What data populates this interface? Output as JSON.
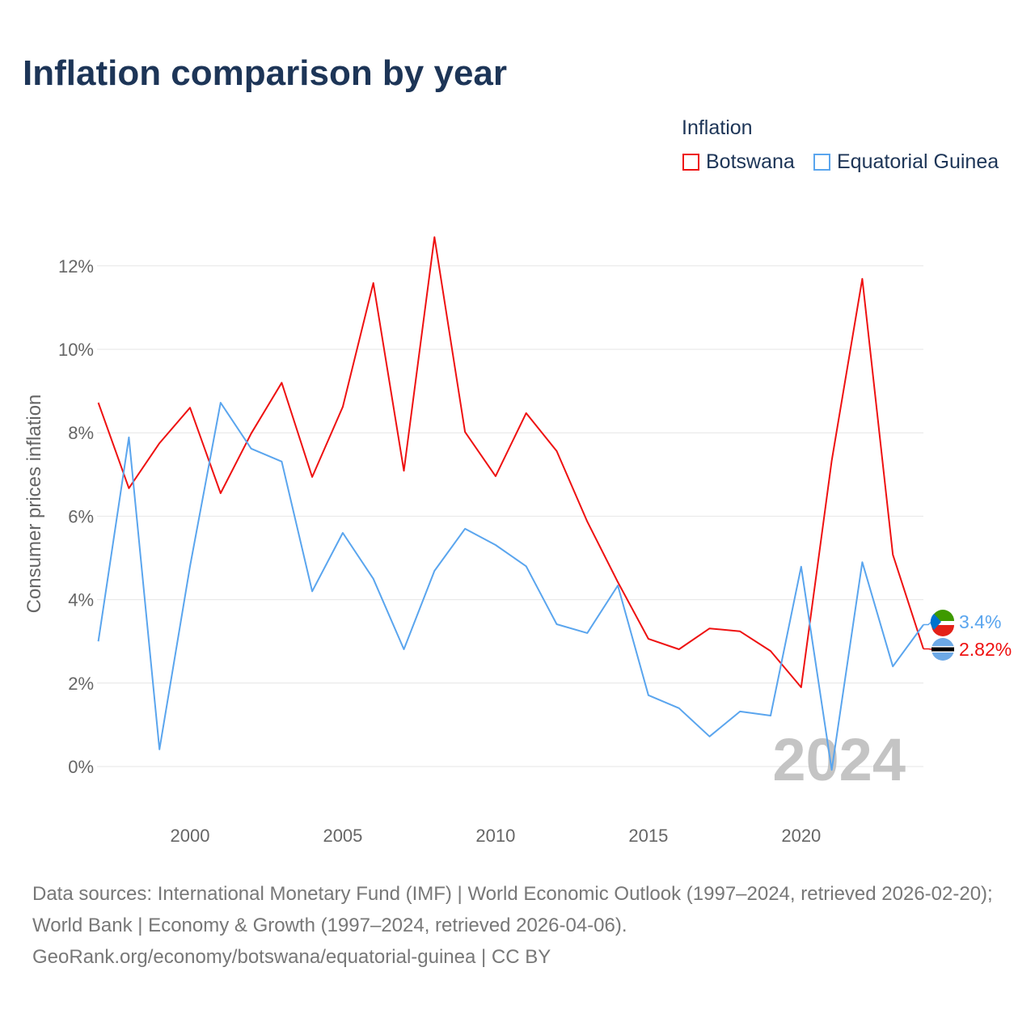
{
  "title": "Inflation comparison by year",
  "legend": {
    "title": "Inflation",
    "items": [
      {
        "name": "Botswana",
        "color": "#ee1111"
      },
      {
        "name": "Equatorial Guinea",
        "color": "#5aa5ee"
      }
    ]
  },
  "footer": {
    "line1": "Data sources: International Monetary Fund (IMF) | World Economic Outlook (1997–2024, retrieved 2026-02-20); World Bank | Economy & Growth (1997–2024, retrieved 2026-04-06).",
    "line2": "GeoRank.org/economy/botswana/equatorial-guinea | CC BY"
  },
  "chart_data": {
    "type": "line",
    "title": "Inflation comparison by year",
    "xlabel": "",
    "ylabel": "Consumer prices inflation",
    "ylim": [
      -1,
      13
    ],
    "xlim": [
      1997,
      2024
    ],
    "grid": true,
    "legend_placement": "top-right",
    "year_watermark": "2024",
    "y_ticks": [
      {
        "v": 0,
        "label": "0%"
      },
      {
        "v": 2,
        "label": "2%"
      },
      {
        "v": 4,
        "label": "4%"
      },
      {
        "v": 6,
        "label": "6%"
      },
      {
        "v": 8,
        "label": "8%"
      },
      {
        "v": 10,
        "label": "10%"
      },
      {
        "v": 12,
        "label": "12%"
      }
    ],
    "x_ticks": [
      {
        "v": 2000,
        "label": "2000"
      },
      {
        "v": 2005,
        "label": "2005"
      },
      {
        "v": 2010,
        "label": "2010"
      },
      {
        "v": 2015,
        "label": "2015"
      },
      {
        "v": 2020,
        "label": "2020"
      }
    ],
    "x": [
      1997,
      1998,
      1999,
      2000,
      2001,
      2002,
      2003,
      2004,
      2005,
      2006,
      2007,
      2008,
      2009,
      2010,
      2011,
      2012,
      2013,
      2014,
      2015,
      2016,
      2017,
      2018,
      2019,
      2020,
      2021,
      2022,
      2023,
      2024
    ],
    "series": [
      {
        "name": "Botswana",
        "color": "#ee1111",
        "end_label": "2.82%",
        "values": [
          8.72,
          6.67,
          7.75,
          8.6,
          6.55,
          7.98,
          9.2,
          6.94,
          8.62,
          11.59,
          7.09,
          12.69,
          8.02,
          6.96,
          8.47,
          7.56,
          5.87,
          4.42,
          3.06,
          2.81,
          3.31,
          3.24,
          2.77,
          1.9,
          7.33,
          11.69,
          5.08,
          2.82
        ]
      },
      {
        "name": "Equatorial Guinea",
        "color": "#5aa5ee",
        "end_label": "3.4%",
        "values": [
          3.0,
          7.89,
          0.41,
          4.8,
          8.72,
          7.62,
          7.31,
          4.2,
          5.6,
          4.5,
          2.81,
          4.69,
          5.7,
          5.31,
          4.8,
          3.41,
          3.2,
          4.34,
          1.71,
          1.4,
          0.72,
          1.32,
          1.22,
          4.79,
          -0.08,
          4.9,
          2.4,
          3.4
        ]
      }
    ]
  }
}
